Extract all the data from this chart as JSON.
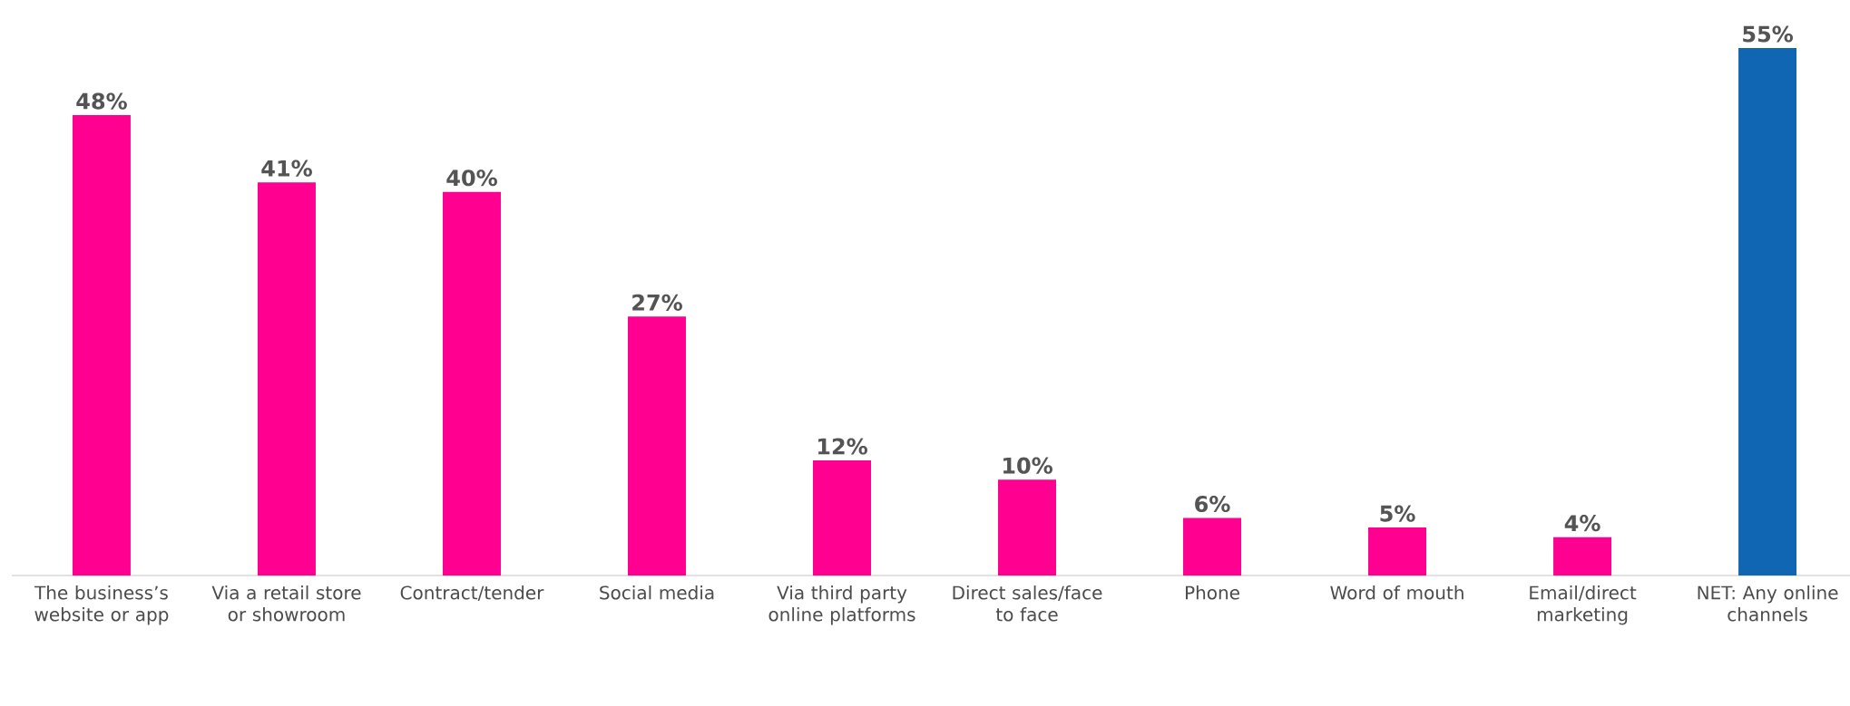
{
  "chart_data": {
    "type": "bar",
    "categories": [
      "The business’s website or app",
      "Via a retail store or showroom",
      "Contract/tender",
      "Social media",
      "Via third party online platforms",
      "Direct sales/face to face",
      "Phone",
      "Word of mouth",
      "Email/direct marketing",
      "NET: Any online channels"
    ],
    "values": [
      48,
      41,
      40,
      27,
      12,
      10,
      6,
      5,
      4,
      55
    ],
    "colors": [
      "#ff0090",
      "#ff0090",
      "#ff0090",
      "#ff0090",
      "#ff0090",
      "#ff0090",
      "#ff0090",
      "#ff0090",
      "#ff0090",
      "#1166b3"
    ],
    "value_labels": [
      "48%",
      "41%",
      "40%",
      "27%",
      "12%",
      "10%",
      "6%",
      "5%",
      "4%",
      "55%"
    ]
  }
}
